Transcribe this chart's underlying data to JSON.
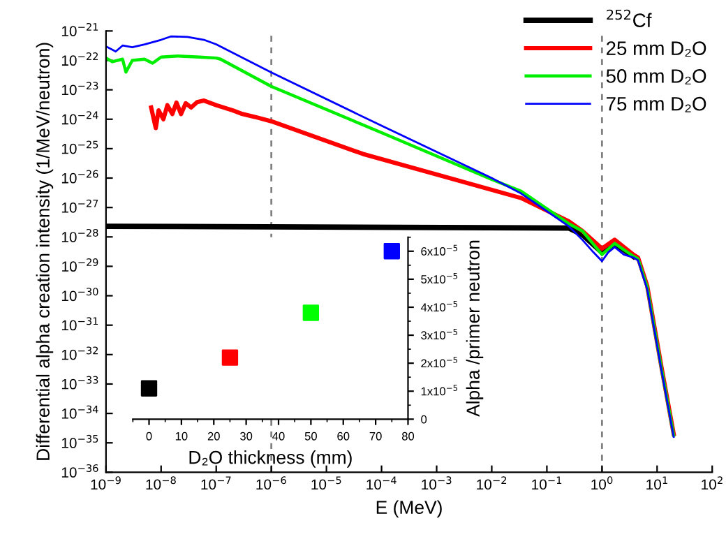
{
  "chart_data": [
    {
      "type": "line",
      "xlabel": "E (MeV)",
      "ylabel": "Differential alpha creation intensity (1/MeV/neutron)",
      "log": "xy",
      "legend": "top right",
      "grid": false,
      "line_style": "solid",
      "xlim": [
        1e-09,
        100
      ],
      "ylim": [
        1e-36,
        1e-21
      ],
      "xticks": [
        {
          "value": 1e-09,
          "label": "10$^{−9}$"
        },
        {
          "value": 1e-08,
          "label": "10$^{−8}$"
        },
        {
          "value": 1e-07,
          "label": "10$^{−7}$"
        },
        {
          "value": 1e-06,
          "label": "10$^{−6}$"
        },
        {
          "value": 1e-05,
          "label": "10$^{−5}$"
        },
        {
          "value": 0.0001,
          "label": "10$^{−4}$"
        },
        {
          "value": 0.001,
          "label": "10$^{−3}$"
        },
        {
          "value": 0.01,
          "label": "10$^{−2}$"
        },
        {
          "value": 0.1,
          "label": "10$^{−1}$"
        },
        {
          "value": 1,
          "label": "10$^{0}$"
        },
        {
          "value": 10,
          "label": "10$^{1}$"
        },
        {
          "value": 100,
          "label": "10$^{2}$"
        }
      ],
      "yticks": [
        {
          "value": 1e-36,
          "label": "10$^{−36}$"
        },
        {
          "value": 1e-35,
          "label": "10$^{−35}$"
        },
        {
          "value": 1e-34,
          "label": "10$^{−34}$"
        },
        {
          "value": 1e-33,
          "label": "10$^{−33}$"
        },
        {
          "value": 1e-32,
          "label": "10$^{−32}$"
        },
        {
          "value": 1e-31,
          "label": "10$^{−31}$"
        },
        {
          "value": 1e-30,
          "label": "10$^{−30}$"
        },
        {
          "value": 1e-29,
          "label": "10$^{−29}$"
        },
        {
          "value": 1e-28,
          "label": "10$^{−28}$"
        },
        {
          "value": 1e-27,
          "label": "10$^{−27}$"
        },
        {
          "value": 1e-26,
          "label": "10$^{−26}$"
        },
        {
          "value": 1e-25,
          "label": "10$^{−25}$"
        },
        {
          "value": 1e-24,
          "label": "10$^{−24}$"
        },
        {
          "value": 1e-23,
          "label": "10$^{−23}$"
        },
        {
          "value": 1e-22,
          "label": "10$^{−22}$"
        },
        {
          "value": 1e-21,
          "label": "10$^{−21}$"
        }
      ],
      "ref_lines": [
        {
          "axis": "x",
          "value": 1e-06,
          "label": null,
          "color": "#808080",
          "line_style": "dashed"
        },
        {
          "axis": "x",
          "value": 1,
          "label": null,
          "color": "#808080",
          "line_style": "dashed"
        }
      ],
      "series": [
        {
          "name": "$^{252}$Cf",
          "color": "#000000",
          "x": [
            1e-09,
            0.25,
            0.44,
            1,
            1.7,
            3.7
          ],
          "values": [
            2.3e-28,
            2e-28,
            1.2e-28,
            3e-29,
            6e-29,
            2.2e-29
          ]
        },
        {
          "name": "25 mm D₂O",
          "color": "#ff0000",
          "x": [
            6.6e-09,
            8e-09,
            9e-09,
            1.1e-08,
            1.3e-08,
            1.6e-08,
            1.9e-08,
            2.3e-08,
            2.8e-08,
            3.5e-08,
            4.5e-08,
            6e-08,
            1e-07,
            2e-07,
            3e-07,
            5e-07,
            1e-06,
            4.6e-05,
            0.034,
            0.25,
            0.44,
            1,
            1.7,
            3.7,
            4.5,
            6.6,
            11.8,
            20
          ],
          "values": [
            2.5e-24,
            5e-25,
            2e-24,
            1e-24,
            3e-24,
            1.5e-24,
            3.7e-24,
            1.5e-24,
            3.5e-24,
            2.5e-24,
            3.8e-24,
            4.3e-24,
            3e-24,
            2e-24,
            1.5e-24,
            1.2e-24,
            8.5e-25,
            6.6e-26,
            2.1e-27,
            3.4e-28,
            1.6e-28,
            4e-29,
            8e-29,
            2.5e-29,
            2e-29,
            2.2e-30,
            4.5e-33,
            2e-35
          ]
        },
        {
          "name": "50 mm D₂O",
          "color": "#00ee00",
          "x": [
            1e-09,
            1.3e-09,
            2e-09,
            2.3e-09,
            3e-09,
            5e-09,
            7e-09,
            1e-08,
            2e-08,
            5e-08,
            1e-07,
            1.2e-07,
            1e-06,
            0.0001,
            0.01,
            0.034,
            0.25,
            0.44,
            1,
            1.7,
            3.7,
            4.5,
            6.6,
            11.8,
            20
          ],
          "values": [
            1.2e-22,
            9e-23,
            1.1e-22,
            4e-23,
            1e-22,
            1.1e-22,
            8e-23,
            1.3e-22,
            1.4e-22,
            1.3e-22,
            1.2e-22,
            1.1e-22,
            1.3e-23,
            3.5e-25,
            9e-27,
            3.6e-27,
            2.8e-28,
            1.6e-28,
            2.5e-29,
            6e-29,
            2.2e-29,
            1.8e-29,
            2e-30,
            4e-33,
            1.8e-35
          ]
        },
        {
          "name": "75 mm D₂O",
          "color": "#0000ff",
          "x": [
            1e-09,
            1.5e-09,
            2e-09,
            3e-09,
            5e-09,
            1e-08,
            1.5e-08,
            3e-08,
            6e-08,
            1e-07,
            1e-06,
            0.0001,
            0.01,
            0.034,
            0.25,
            0.44,
            0.7,
            1,
            1.3,
            1.7,
            2.5,
            3.7,
            4.5,
            6.6,
            11.8,
            20
          ],
          "values": [
            3e-22,
            2e-22,
            3.2e-22,
            2.8e-22,
            3.5e-22,
            5e-22,
            6.5e-22,
            6.3e-22,
            5e-22,
            3.5e-22,
            3.9e-23,
            6e-25,
            1e-26,
            3e-27,
            2.3e-28,
            8e-29,
            3e-29,
            1.5e-29,
            3e-29,
            4.5e-29,
            2.5e-29,
            2e-29,
            1.6e-29,
            1.7e-30,
            3.5e-33,
            1.6e-35
          ]
        }
      ]
    },
    {
      "type": "scatter",
      "xlabel": "D₂O thickness (mm)",
      "ylabel": "Alpha /primer neutron",
      "marker": "square",
      "grid": false,
      "legend": false,
      "x": [
        0,
        25,
        50,
        75
      ],
      "values": [
        1.1e-05,
        2.2e-05,
        3.8e-05,
        6e-05
      ],
      "colors": [
        "#000000",
        "#ff0000",
        "#00ff00",
        "#0000ff"
      ],
      "xlim": [
        -5,
        80
      ],
      "ylim": [
        0,
        6.5e-05
      ],
      "xticks": [
        0,
        10,
        20,
        30,
        40,
        50,
        60,
        70,
        80
      ],
      "yticks": [
        {
          "value": 0,
          "label": "0"
        },
        {
          "value": 1e-05,
          "label": "1x10$^{−5}$"
        },
        {
          "value": 2e-05,
          "label": "2x10$^{−5}$"
        },
        {
          "value": 3e-05,
          "label": "3x10$^{−5}$"
        },
        {
          "value": 4e-05,
          "label": "4x10$^{−5}$"
        },
        {
          "value": 5e-05,
          "label": "5x10$^{−5}$"
        },
        {
          "value": 6e-05,
          "label": "6x10$^{−5}$"
        }
      ]
    }
  ]
}
